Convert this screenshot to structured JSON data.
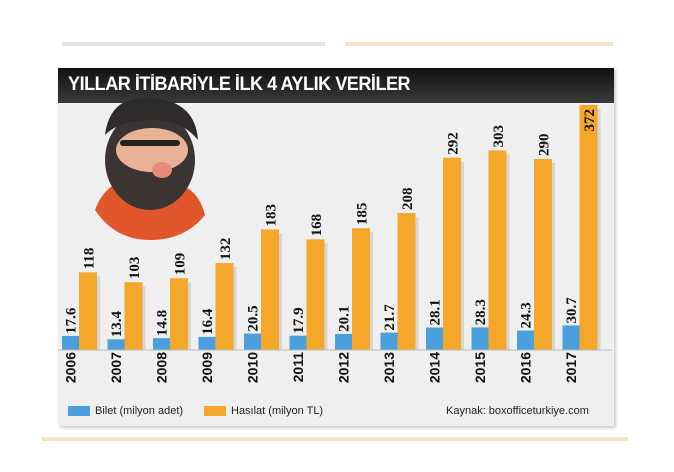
{
  "chart_data": {
    "type": "bar",
    "title": "YILLAR İTİBARİYLE  İLK 4 AYLIK VERİLER",
    "categories": [
      "2006",
      "2007",
      "2008",
      "2009",
      "2010",
      "2011",
      "2012",
      "2013",
      "2014",
      "2015",
      "2016",
      "2017"
    ],
    "series": [
      {
        "name": "Bilet (milyon adet)",
        "color": "#4a9fdc",
        "values": [
          17.6,
          13.4,
          14.8,
          16.4,
          20.5,
          17.9,
          20.1,
          21.7,
          28.1,
          28.3,
          24.3,
          30.7
        ],
        "labels": [
          "17.6",
          "13.4",
          "14.8",
          "16.4",
          "20.5",
          "17.9",
          "20.1",
          "21.7",
          "28.1",
          "28.3",
          "24.3",
          "30.7"
        ]
      },
      {
        "name": "Hasılat (milyon TL)",
        "color": "#f5a72c",
        "values": [
          118,
          103,
          109,
          132,
          183,
          168,
          185,
          208,
          292,
          303,
          290,
          372
        ],
        "labels": [
          "118",
          "103",
          "109",
          "132",
          "183",
          "168",
          "185",
          "208",
          "292",
          "303",
          "290",
          "372"
        ]
      }
    ],
    "source": "Kaynak: boxofficeturkiye.com",
    "grid": false,
    "legend_placement": "bottom-left"
  }
}
